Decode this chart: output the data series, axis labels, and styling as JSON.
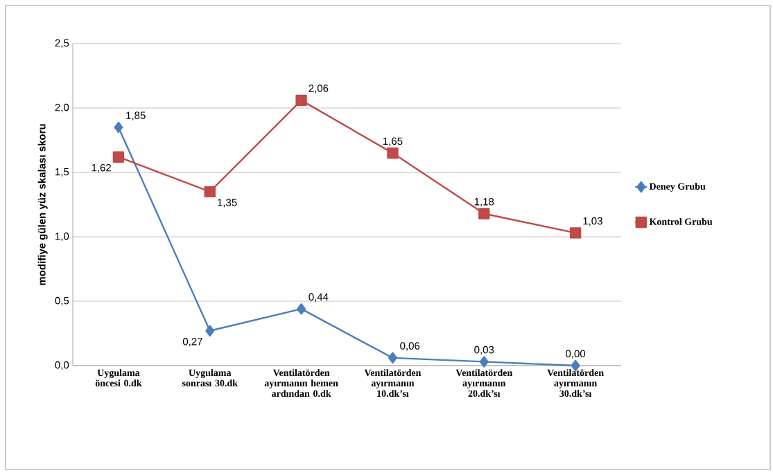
{
  "chart_data": {
    "type": "line",
    "ylabel": "modifiye gülen yüz skalası skoru",
    "categories": [
      "Uygulama öncesi 0.dk",
      "Uygulama sonrası 30.dk",
      "Ventilatörden ayırmanın hemen ardından 0.dk",
      "Ventilatörden ayırmanın 10.dk’sı",
      "Ventilatörden ayırmanın 20.dk’sı",
      "Ventilatörden ayırmanın 30.dk’sı"
    ],
    "series": [
      {
        "name": "Deney Grubu",
        "color": "#4a7ebb",
        "marker": "diamond",
        "values": [
          1.85,
          0.27,
          0.44,
          0.06,
          0.03,
          0.0
        ],
        "value_labels": [
          "1,85",
          "0,27",
          "0,44",
          "0,06",
          "0,03",
          "0,00"
        ]
      },
      {
        "name": "Kontrol Grubu",
        "color": "#be4b48",
        "marker": "square",
        "values": [
          1.62,
          1.35,
          2.06,
          1.65,
          1.18,
          1.03
        ],
        "value_labels": [
          "1,62",
          "1,35",
          "2,06",
          "1,65",
          "1,18",
          "1,03"
        ]
      }
    ],
    "ylim": [
      0,
      2.5
    ],
    "yticks": [
      {
        "value": 0,
        "label": "0,0"
      },
      {
        "value": 0.5,
        "label": "0,5"
      },
      {
        "value": 1,
        "label": "1,0"
      },
      {
        "value": 1.5,
        "label": "1,5"
      },
      {
        "value": 2,
        "label": "2,0"
      },
      {
        "value": 2.5,
        "label": "2,5"
      }
    ],
    "grid": "y",
    "legend": "right",
    "line_style": "solid"
  }
}
